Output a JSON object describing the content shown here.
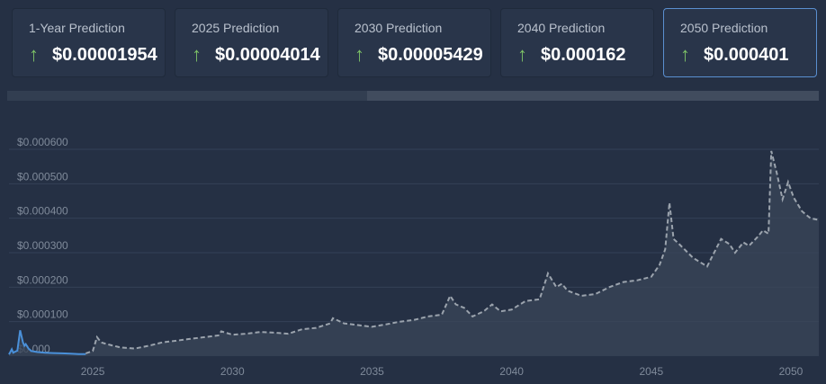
{
  "cards": [
    {
      "label": "1-Year Prediction",
      "value": "$0.00001954",
      "icon": "arrow-up-icon",
      "active": false
    },
    {
      "label": "2025 Prediction",
      "value": "$0.00004014",
      "icon": "arrow-up-icon",
      "active": false
    },
    {
      "label": "2030 Prediction",
      "value": "$0.00005429",
      "icon": "arrow-up-icon",
      "active": false
    },
    {
      "label": "2040 Prediction",
      "value": "$0.000162",
      "icon": "arrow-up-icon",
      "active": false
    },
    {
      "label": "2050 Prediction",
      "value": "$0.000401",
      "icon": "arrow-up-icon",
      "active": true
    }
  ],
  "colors": {
    "accent": "#5a8fd0",
    "up": "#7dc167",
    "historical": "#4a90d9",
    "forecast": "#9ba3ad"
  },
  "chart_data": {
    "type": "line",
    "xlim": [
      2022,
      2051
    ],
    "ylim": [
      0,
      0.0006
    ],
    "y_ticks": [
      0,
      0.0001,
      0.0002,
      0.0003,
      0.0004,
      0.0005,
      0.0006
    ],
    "y_tick_labels": [
      "$0.000",
      "$0.000100",
      "$0.000200",
      "$0.000300",
      "$0.000400",
      "$0.000500",
      "$0.000600"
    ],
    "x_ticks": [
      2025,
      2030,
      2035,
      2040,
      2045,
      2050
    ],
    "x_tick_labels": [
      "2025",
      "2030",
      "2035",
      "2040",
      "2045",
      "2050"
    ],
    "grid": true,
    "series": [
      {
        "style": "solid",
        "x": [
          2022.0,
          2022.1,
          2022.15,
          2022.2,
          2022.3,
          2022.4,
          2022.5,
          2022.55,
          2022.6,
          2022.7,
          2022.8,
          2023.0,
          2023.3,
          2023.6,
          2023.9,
          2024.2,
          2024.5,
          2024.75
        ],
        "y": [
          5e-06,
          2e-05,
          1e-05,
          1.2e-05,
          1.6e-05,
          7.5e-05,
          4e-05,
          3e-05,
          3.5e-05,
          2.2e-05,
          1.5e-05,
          1.2e-05,
          1e-05,
          9e-06,
          8e-06,
          7e-06,
          6e-06,
          6e-06
        ]
      },
      {
        "style": "dashed",
        "x": [
          2024.75,
          2025.0,
          2025.15,
          2025.3,
          2025.5,
          2026.0,
          2026.5,
          2027.0,
          2027.5,
          2028.0,
          2028.5,
          2029.0,
          2029.5,
          2029.6,
          2030.0,
          2030.5,
          2031.0,
          2031.5,
          2032.0,
          2032.5,
          2033.0,
          2033.5,
          2033.6,
          2034.0,
          2034.5,
          2035.0,
          2035.5,
          2036.0,
          2036.5,
          2037.0,
          2037.5,
          2037.8,
          2038.0,
          2038.3,
          2038.6,
          2039.0,
          2039.3,
          2039.6,
          2040.0,
          2040.5,
          2041.0,
          2041.3,
          2041.6,
          2041.8,
          2042.0,
          2042.5,
          2043.0,
          2043.5,
          2044.0,
          2044.5,
          2045.0,
          2045.3,
          2045.5,
          2045.65,
          2045.8,
          2046.0,
          2046.5,
          2047.0,
          2047.5,
          2047.8,
          2048.0,
          2048.3,
          2048.5,
          2048.8,
          2049.0,
          2049.2,
          2049.3,
          2049.5,
          2049.7,
          2049.9,
          2050.1,
          2050.4,
          2050.7,
          2051.0
        ],
        "y": [
          8e-06,
          1.5e-05,
          5.5e-05,
          4e-05,
          3.5e-05,
          2.5e-05,
          2.2e-05,
          3e-05,
          4e-05,
          4.5e-05,
          5e-05,
          5.5e-05,
          6e-05,
          7.2e-05,
          6.2e-05,
          6.5e-05,
          7e-05,
          6.8e-05,
          6.5e-05,
          7.8e-05,
          8.2e-05,
          9.5e-05,
          0.00011,
          9.5e-05,
          9e-05,
          8.5e-05,
          9.2e-05,
          0.0001,
          0.000105,
          0.000115,
          0.00012,
          0.000175,
          0.00015,
          0.00014,
          0.000115,
          0.00013,
          0.00015,
          0.00013,
          0.000135,
          0.00016,
          0.000165,
          0.00024,
          0.0002,
          0.00021,
          0.00019,
          0.000175,
          0.00018,
          0.0002,
          0.000215,
          0.00022,
          0.00023,
          0.000265,
          0.00031,
          0.000445,
          0.00034,
          0.000325,
          0.000285,
          0.00026,
          0.00034,
          0.000325,
          0.0003,
          0.00033,
          0.00032,
          0.000345,
          0.000365,
          0.000355,
          0.000595,
          0.00053,
          0.000455,
          0.000505,
          0.00046,
          0.00042,
          0.0004,
          0.000395
        ]
      }
    ]
  }
}
